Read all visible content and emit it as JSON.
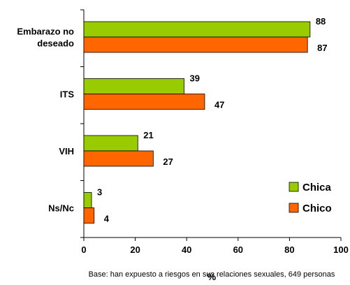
{
  "chart_data": {
    "type": "bar",
    "orientation": "horizontal",
    "categories": [
      [
        "Embarazo no",
        "deseado"
      ],
      [
        "ITS"
      ],
      [
        "VIH"
      ],
      [
        "Ns/Nc"
      ]
    ],
    "series": [
      {
        "name": "Chica",
        "values": [
          88,
          39,
          21,
          3
        ],
        "color": "#99cc00"
      },
      {
        "name": "Chico",
        "values": [
          87,
          47,
          27,
          4
        ],
        "color": "#ff6600"
      }
    ],
    "xlabel": "%",
    "xlim": [
      0,
      100
    ],
    "xticks": [
      0,
      20,
      40,
      60,
      80,
      100
    ],
    "grid": false,
    "legend_position": "bottom-right",
    "footnote": "Base: han expuesto a riesgos en sus relaciones sexuales, 649 personas"
  }
}
